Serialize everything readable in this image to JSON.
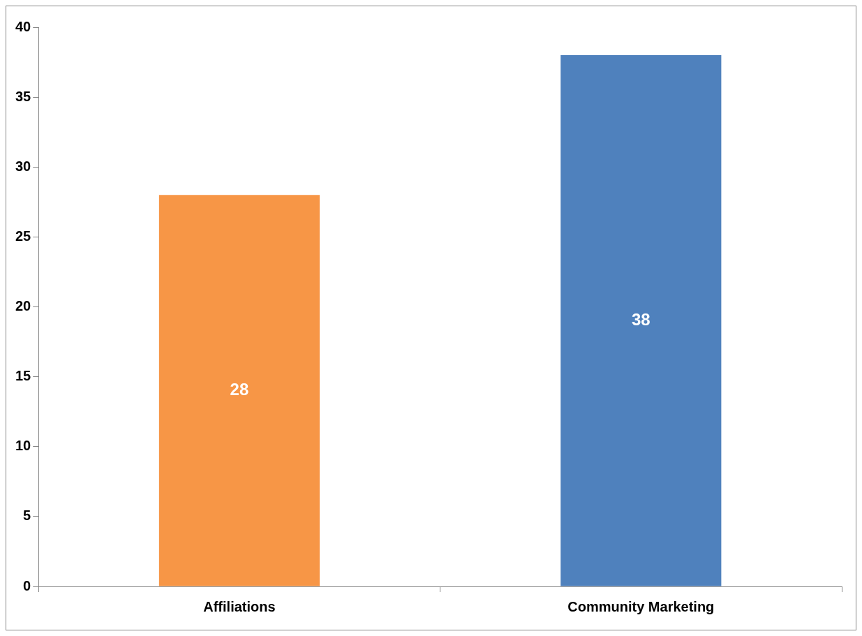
{
  "chart_data": {
    "type": "bar",
    "categories": [
      "Affiliations",
      "Community Marketing"
    ],
    "values": [
      28,
      38
    ],
    "colors": [
      "#f79646",
      "#4f81bd"
    ],
    "ylim": [
      0,
      40
    ],
    "yticks": [
      0,
      5,
      10,
      15,
      20,
      25,
      30,
      35,
      40
    ],
    "grid": false,
    "legend": false,
    "data_labels": true
  }
}
